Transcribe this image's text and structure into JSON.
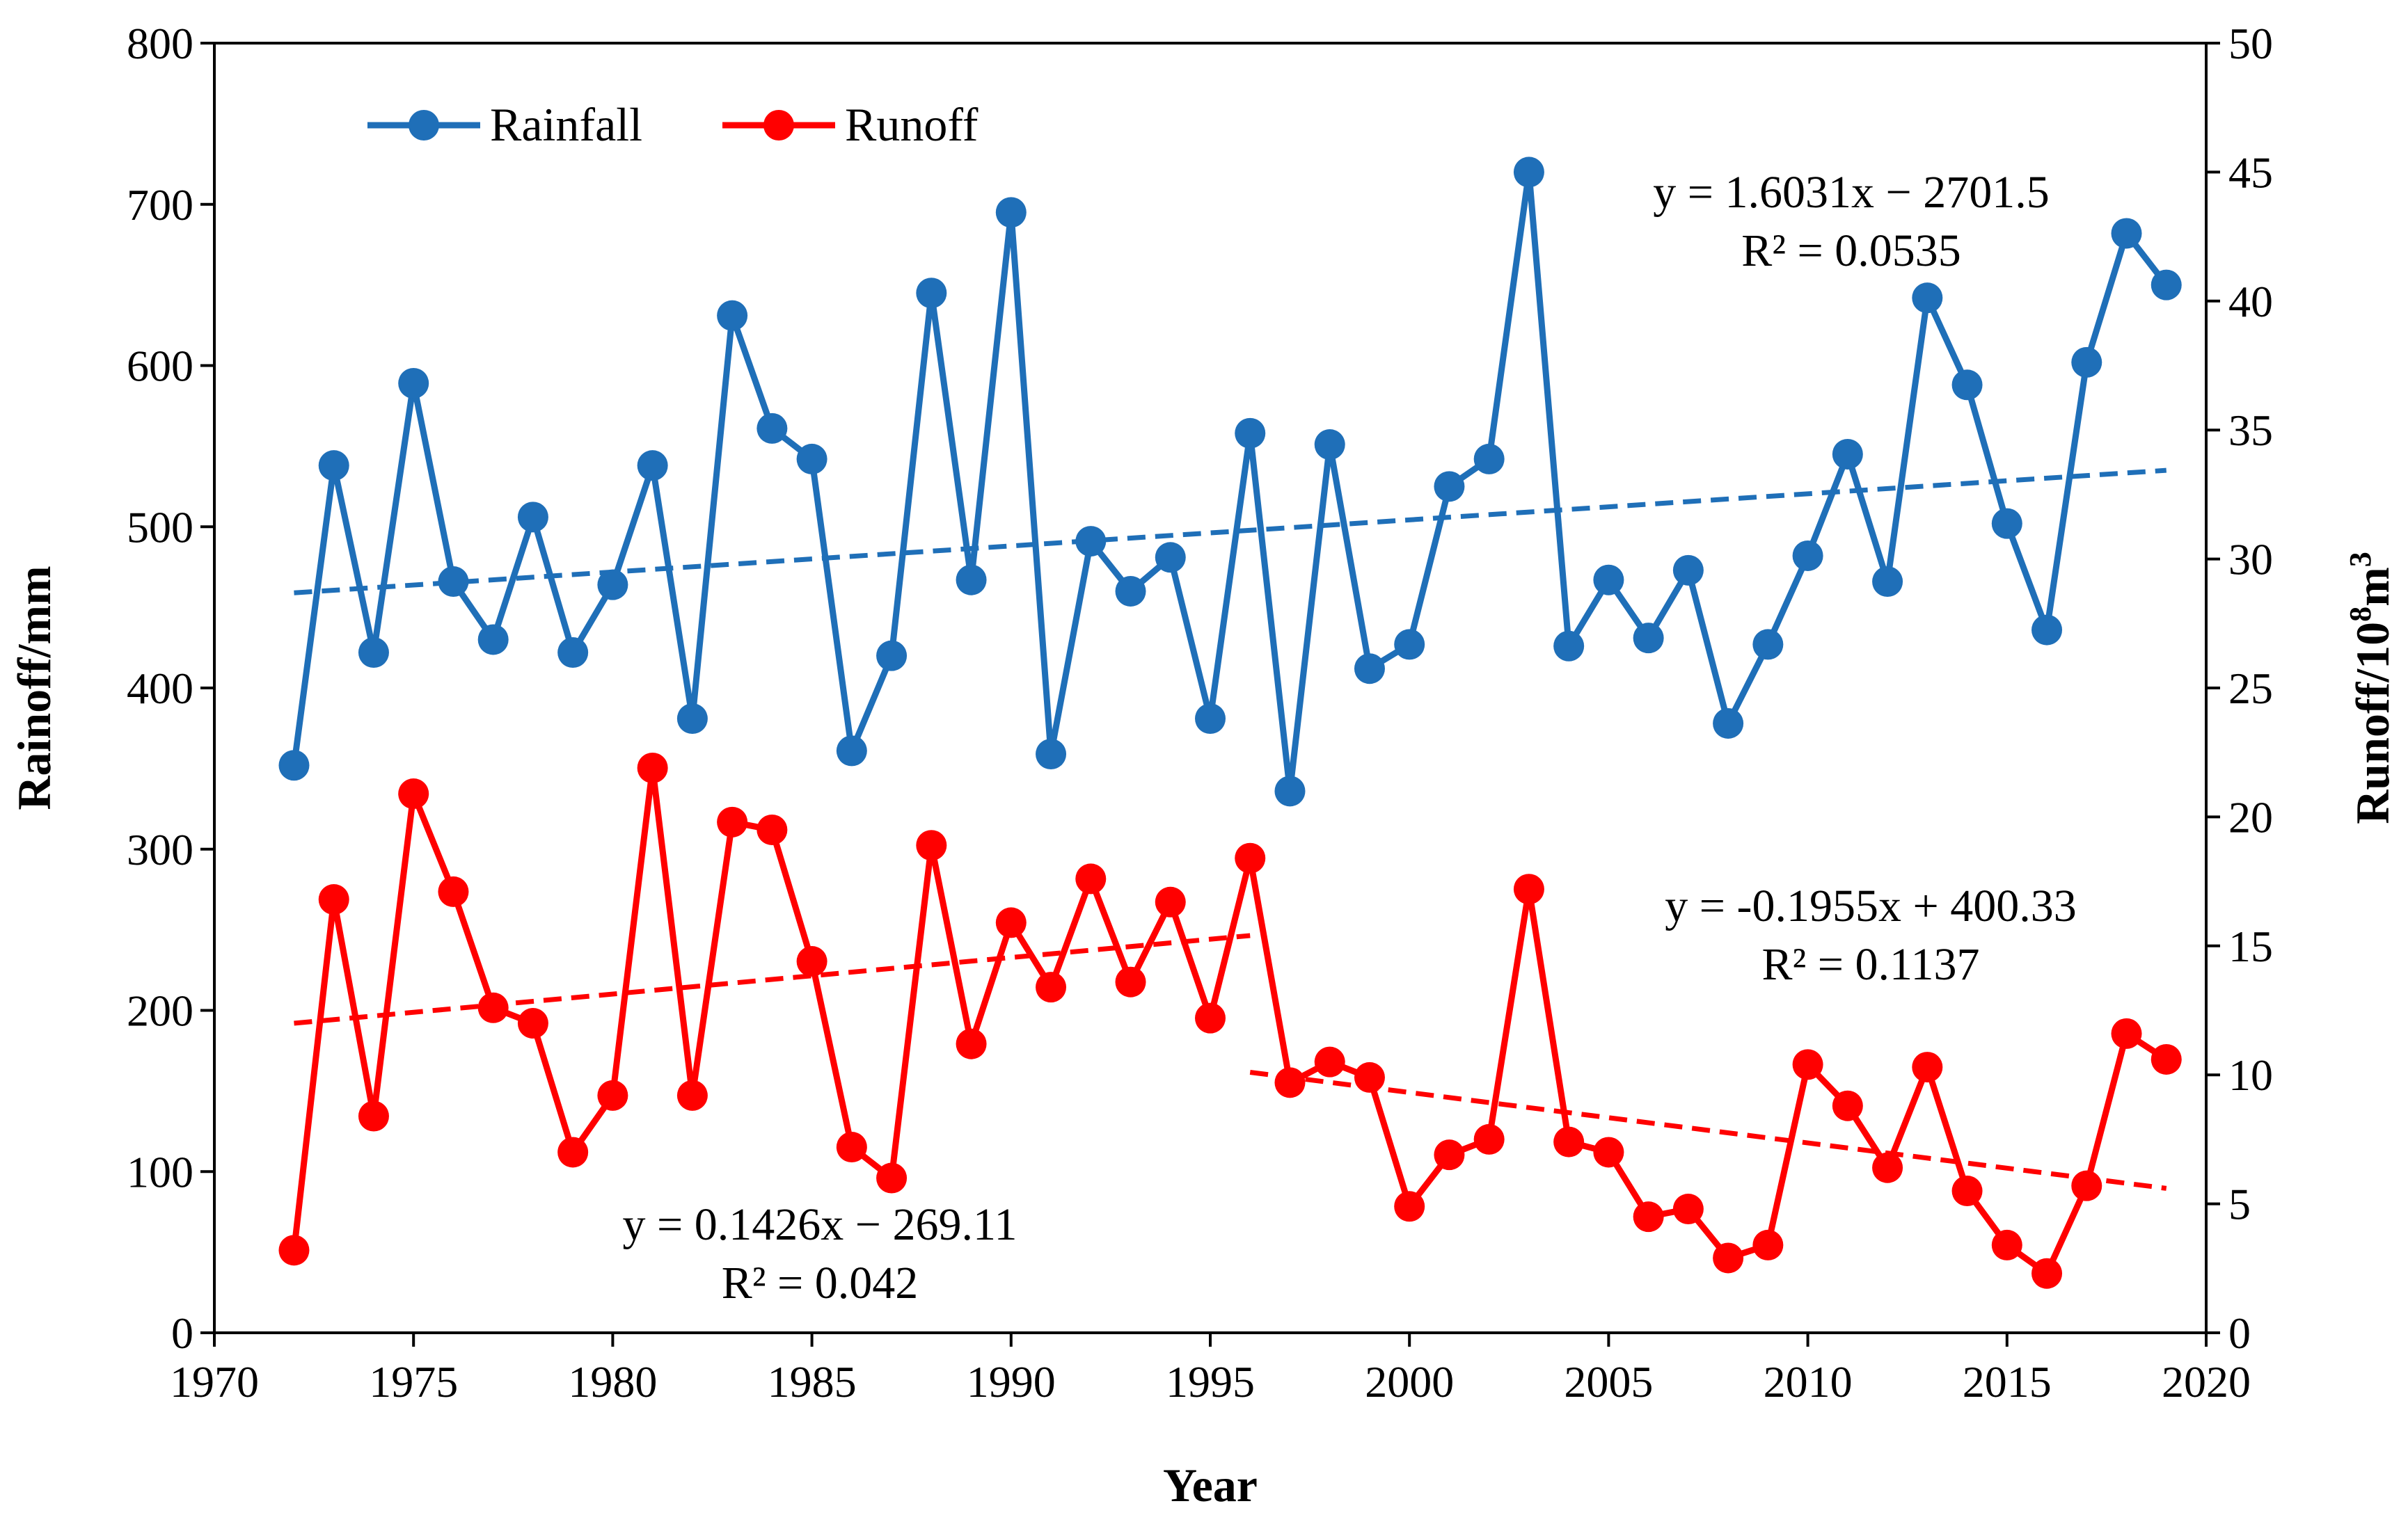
{
  "chart_data": {
    "type": "line",
    "title": "",
    "xlabel": "Year",
    "ylabel": "Rainoff/mm",
    "y2label": "Runoff/10⁸m³",
    "y2label_base": "Runoff/10",
    "y2label_sup": "8",
    "y2label_unit": "m",
    "y2label_unit_sup": "3",
    "xlim": [
      1970,
      2020
    ],
    "ylim": [
      0,
      800
    ],
    "y2lim": [
      0,
      50
    ],
    "x_ticks": [
      1970,
      1975,
      1980,
      1985,
      1990,
      1995,
      2000,
      2005,
      2010,
      2015,
      2020
    ],
    "y_ticks": [
      0,
      100,
      200,
      300,
      400,
      500,
      600,
      700,
      800
    ],
    "y2_ticks": [
      0,
      5,
      10,
      15,
      20,
      25,
      30,
      35,
      40,
      45,
      50
    ],
    "legend_position": "top-left",
    "grid": false,
    "x": [
      1972,
      1973,
      1974,
      1975,
      1976,
      1977,
      1978,
      1979,
      1980,
      1981,
      1982,
      1983,
      1984,
      1985,
      1986,
      1987,
      1988,
      1989,
      1990,
      1991,
      1992,
      1993,
      1994,
      1995,
      1996,
      1997,
      1998,
      1999,
      2000,
      2001,
      2002,
      2003,
      2004,
      2005,
      2006,
      2007,
      2008,
      2009,
      2010,
      2011,
      2012,
      2013,
      2014,
      2015,
      2016,
      2017,
      2018,
      2019
    ],
    "series": [
      {
        "name": "Rainfall",
        "axis": "left",
        "color": "#1f6fb8",
        "values": [
          352,
          538,
          422,
          589,
          466,
          430,
          506,
          422,
          464,
          538,
          381,
          631,
          561,
          542,
          361,
          420,
          645,
          467,
          695,
          359,
          491,
          460,
          481,
          381,
          558,
          336,
          551,
          412,
          427,
          525,
          542,
          720,
          426,
          467,
          431,
          473,
          378,
          427,
          482,
          545,
          466,
          642,
          588,
          502,
          436,
          602,
          682,
          650
        ]
      },
      {
        "name": "Runoff",
        "axis": "right",
        "color": "#ff0000",
        "values": [
          3.2,
          16.8,
          8.4,
          20.9,
          17.1,
          12.6,
          12.0,
          7.0,
          9.2,
          21.9,
          9.2,
          19.8,
          19.5,
          14.4,
          7.2,
          6.0,
          18.9,
          11.2,
          15.9,
          13.4,
          17.6,
          13.6,
          16.7,
          12.2,
          18.4,
          9.7,
          10.5,
          9.9,
          4.9,
          6.9,
          7.5,
          17.2,
          7.4,
          7.0,
          4.5,
          4.8,
          2.9,
          3.4,
          10.4,
          8.8,
          6.4,
          10.3,
          5.5,
          3.4,
          2.3,
          5.7,
          11.6,
          10.6
        ]
      }
    ],
    "trendlines": [
      {
        "series": "Rainfall",
        "axis": "left",
        "color": "#1f6fb8",
        "x_start": 1972,
        "x_end": 2019,
        "y_start": 459,
        "y_end": 535
      },
      {
        "series": "Runoff",
        "axis": "right",
        "color": "#ff0000",
        "x_start": 1972,
        "x_end": 1996,
        "y_start": 12.0,
        "y_end": 15.4
      },
      {
        "series": "Runoff",
        "axis": "right",
        "color": "#ff0000",
        "x_start": 1996,
        "x_end": 2019,
        "y_start": 10.1,
        "y_end": 5.6
      }
    ],
    "annotations": [
      {
        "equation": "y = 1.6031x − 2701.5",
        "r2": "R² = 0.0535"
      },
      {
        "equation": "y = -0.1955x + 400.33",
        "r2": "R² = 0.1137"
      },
      {
        "equation": "y = 0.1426x − 269.11",
        "r2": "R² = 0.042"
      }
    ]
  }
}
